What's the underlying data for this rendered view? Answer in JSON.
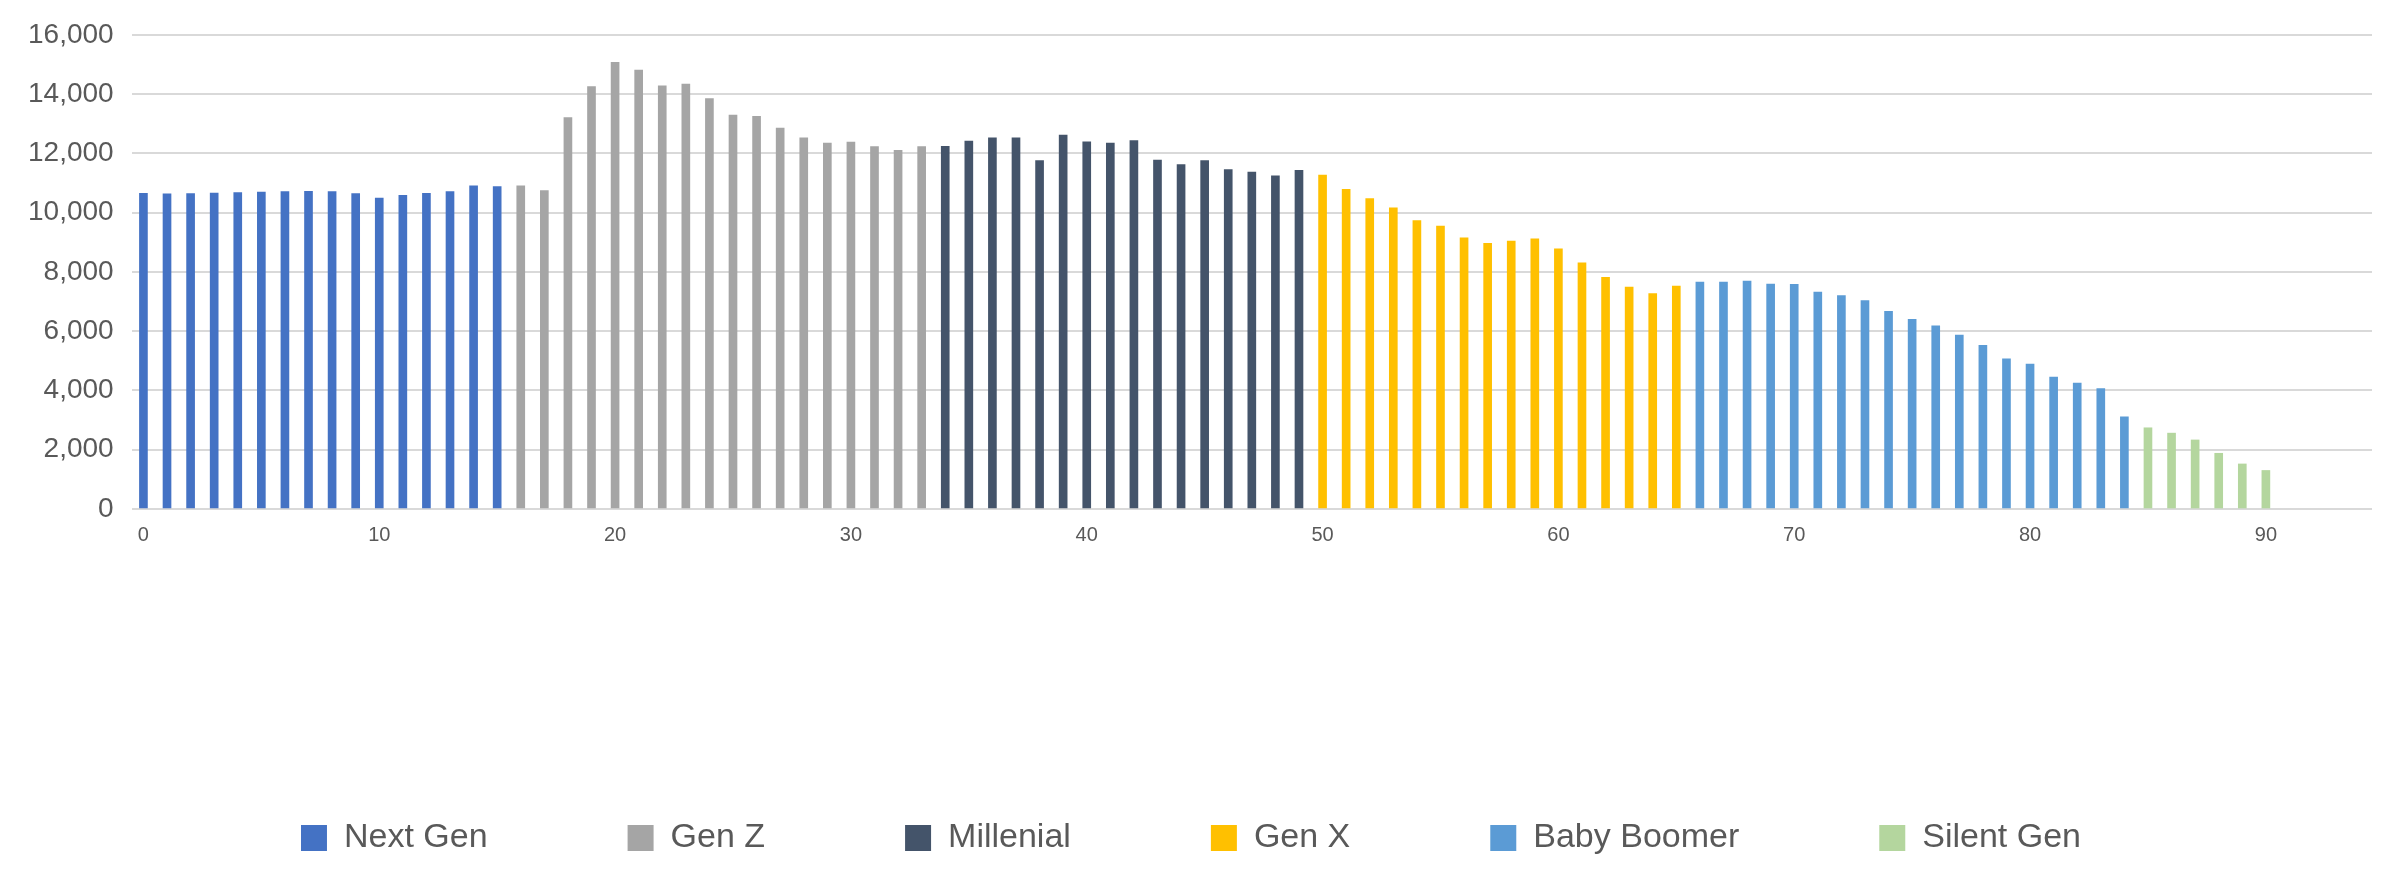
{
  "chart_data": {
    "type": "bar",
    "xlim": [
      -0.5,
      94.5
    ],
    "xticks": [
      0,
      10,
      20,
      30,
      40,
      50,
      60,
      70,
      80,
      90
    ],
    "ylim": [
      0,
      16000
    ],
    "yticks": [
      {
        "value": 0,
        "label": "0"
      },
      {
        "value": 2000,
        "label": "2,000"
      },
      {
        "value": 4000,
        "label": "4,000"
      },
      {
        "value": 6000,
        "label": "6,000"
      },
      {
        "value": 8000,
        "label": "8,000"
      },
      {
        "value": 10000,
        "label": "10,000"
      },
      {
        "value": 12000,
        "label": "12,000"
      },
      {
        "value": 14000,
        "label": "14,000"
      },
      {
        "value": 16000,
        "label": "16,000"
      }
    ],
    "grid": "y",
    "legend": "bottom",
    "series": [
      {
        "name": "Next Gen",
        "color": "#4472c4",
        "x": [
          0,
          1,
          2,
          3,
          4,
          5,
          6,
          7,
          8,
          9,
          10,
          11,
          12,
          13,
          14,
          15
        ],
        "values": [
          10650,
          10630,
          10640,
          10660,
          10680,
          10690,
          10710,
          10720,
          10710,
          10640,
          10490,
          10580,
          10650,
          10710,
          10900,
          10880
        ]
      },
      {
        "name": "Gen Z",
        "color": "#a5a5a5",
        "x": [
          16,
          17,
          18,
          19,
          20,
          21,
          22,
          23,
          24,
          25,
          26,
          27,
          28,
          29,
          30,
          31,
          32,
          33
        ],
        "values": [
          10900,
          10740,
          13210,
          14250,
          15070,
          14810,
          14280,
          14340,
          13850,
          13290,
          13250,
          12850,
          12520,
          12350,
          12380,
          12230,
          12100,
          12230
        ]
      },
      {
        "name": "Millenial",
        "color": "#44546a",
        "x": [
          34,
          35,
          36,
          37,
          38,
          39,
          40,
          41,
          42,
          43,
          44,
          45,
          46,
          47,
          48,
          49
        ],
        "values": [
          12240,
          12410,
          12520,
          12520,
          11760,
          12620,
          12390,
          12350,
          12430,
          11770,
          11620,
          11760,
          11450,
          11370,
          11240,
          11430
        ]
      },
      {
        "name": "Gen X",
        "color": "#ffc000",
        "x": [
          50,
          51,
          52,
          53,
          54,
          55,
          56,
          57,
          58,
          59,
          60,
          61,
          62,
          63,
          64,
          65
        ],
        "values": [
          11270,
          10790,
          10470,
          10160,
          9730,
          9550,
          9150,
          8960,
          9040,
          9120,
          8780,
          8310,
          7820,
          7490,
          7270,
          7520
        ]
      },
      {
        "name": "Baby Boomer",
        "color": "#5b9bd5",
        "x": [
          66,
          67,
          68,
          69,
          70,
          71,
          72,
          73,
          74,
          75,
          76,
          77,
          78,
          79,
          80,
          81,
          82,
          83,
          84
        ],
        "values": [
          7660,
          7660,
          7690,
          7590,
          7580,
          7320,
          7200,
          7030,
          6670,
          6400,
          6180,
          5870,
          5520,
          5070,
          4890,
          4450,
          4250,
          4060,
          3110
        ]
      },
      {
        "name": "Silent Gen",
        "color": "#b4d69e",
        "x": [
          85,
          86,
          87,
          88,
          89,
          90
        ],
        "values": [
          2740,
          2560,
          2330,
          1880,
          1520,
          1300
        ]
      }
    ]
  }
}
